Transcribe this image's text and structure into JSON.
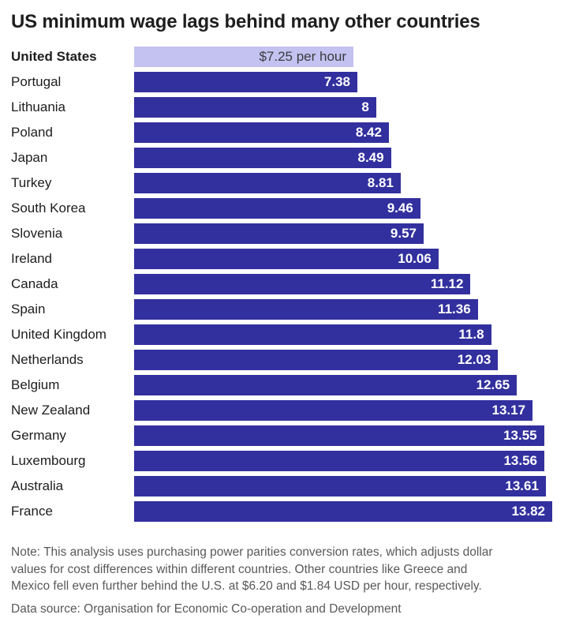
{
  "title": "US minimum wage lags behind many other countries",
  "chart_data": {
    "type": "bar",
    "orientation": "horizontal",
    "unit": "USD per hour (PPP adjusted)",
    "xlim": [
      0,
      13.82
    ],
    "grid": false,
    "legend": "none",
    "bar_color": "#32309e",
    "highlight_bar_color": "#c4c2f0",
    "highlight_index": 0,
    "categories": [
      "United States",
      "Portugal",
      "Lithuania",
      "Poland",
      "Japan",
      "Turkey",
      "South Korea",
      "Slovenia",
      "Ireland",
      "Canada",
      "Spain",
      "United Kingdom",
      "Netherlands",
      "Belgium",
      "New Zealand",
      "Germany",
      "Luxembourg",
      "Australia",
      "France"
    ],
    "values": [
      7.25,
      7.38,
      8,
      8.42,
      8.49,
      8.81,
      9.46,
      9.57,
      10.06,
      11.12,
      11.36,
      11.8,
      12.03,
      12.65,
      13.17,
      13.55,
      13.56,
      13.61,
      13.82
    ],
    "value_labels": [
      "$7.25 per hour",
      "7.38",
      "8",
      "8.42",
      "8.49",
      "8.81",
      "9.46",
      "9.57",
      "10.06",
      "11.12",
      "11.36",
      "11.8",
      "12.03",
      "12.65",
      "13.17",
      "13.55",
      "13.56",
      "13.61",
      "13.82"
    ]
  },
  "note": {
    "lines": [
      "Note: This analysis uses purchasing power parities conversion rates, which adjusts dollar",
      "values for cost differences within different countries. Other countries like Greece and",
      "Mexico fell even further behind the U.S. at $6.20 and $1.84 USD per hour, respectively."
    ]
  },
  "source": "Data source: Organisation for Economic Co-operation and Development"
}
